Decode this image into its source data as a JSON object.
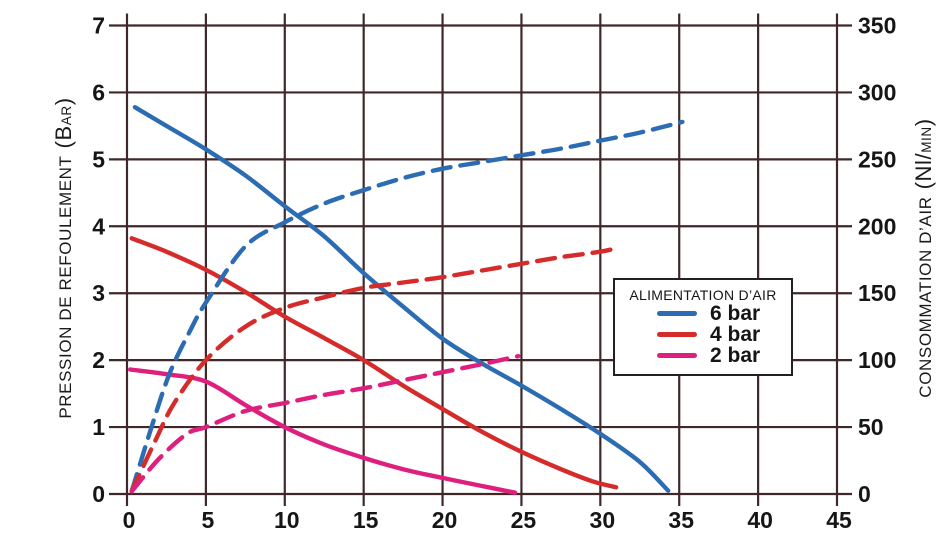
{
  "chart_data": {
    "type": "line",
    "x_axis": {
      "range": [
        0,
        45
      ],
      "ticks": [
        0,
        5,
        10,
        15,
        20,
        25,
        30,
        35,
        40,
        45
      ]
    },
    "left_axis": {
      "label": "PRESSION DE REFOULEMENT",
      "unit_major": "(B",
      "unit_minor": "AR",
      "unit_close": ")",
      "range": [
        0,
        7
      ],
      "ticks": [
        0,
        1,
        2,
        3,
        4,
        5,
        6,
        7
      ]
    },
    "right_axis": {
      "label": "CONSOMMATION D’AIR",
      "unit_major": "(Nl/",
      "unit_minor": "MIN",
      "unit_close": ")",
      "range": [
        0,
        350
      ],
      "ticks": [
        0,
        50,
        100,
        150,
        200,
        250,
        300,
        350
      ]
    },
    "legend": {
      "title": "ALIMENTATION D’AIR",
      "items": [
        {
          "label": "6 bar",
          "color": "#2b6cb3"
        },
        {
          "label": "4 bar",
          "color": "#d52b2b"
        },
        {
          "label": "2 bar",
          "color": "#df1f7d"
        }
      ]
    },
    "grid_color": "#40282a",
    "series": [
      {
        "id": "pression-6bar",
        "legend": "6 bar",
        "color": "#2b6cb3",
        "style": "solid",
        "axis": "left",
        "points": [
          [
            0.5,
            5.78
          ],
          [
            2.5,
            5.5
          ],
          [
            5,
            5.15
          ],
          [
            7.5,
            4.76
          ],
          [
            10,
            4.3
          ],
          [
            12.5,
            3.85
          ],
          [
            15,
            3.3
          ],
          [
            17.5,
            2.8
          ],
          [
            20,
            2.32
          ],
          [
            22.5,
            1.95
          ],
          [
            25,
            1.62
          ],
          [
            27.5,
            1.27
          ],
          [
            30,
            0.9
          ],
          [
            32.5,
            0.48
          ],
          [
            34.3,
            0.05
          ]
        ]
      },
      {
        "id": "pression-4bar",
        "legend": "4 bar",
        "color": "#d52b2b",
        "style": "solid",
        "axis": "left",
        "points": [
          [
            0.3,
            3.82
          ],
          [
            2.5,
            3.62
          ],
          [
            5,
            3.35
          ],
          [
            7.5,
            3.02
          ],
          [
            10,
            2.65
          ],
          [
            12.5,
            2.33
          ],
          [
            15,
            2.0
          ],
          [
            17.5,
            1.62
          ],
          [
            20,
            1.27
          ],
          [
            22.5,
            0.93
          ],
          [
            25,
            0.63
          ],
          [
            27.5,
            0.37
          ],
          [
            29.5,
            0.19
          ],
          [
            31,
            0.1
          ]
        ]
      },
      {
        "id": "pression-2bar",
        "legend": "2 bar",
        "color": "#df1f7d",
        "style": "solid",
        "axis": "left",
        "points": [
          [
            0.2,
            1.86
          ],
          [
            2.5,
            1.79
          ],
          [
            5,
            1.68
          ],
          [
            7.5,
            1.33
          ],
          [
            10,
            1.0
          ],
          [
            12.5,
            0.74
          ],
          [
            15,
            0.54
          ],
          [
            17.5,
            0.37
          ],
          [
            20,
            0.24
          ],
          [
            22.5,
            0.12
          ],
          [
            24.6,
            0.02
          ]
        ]
      },
      {
        "id": "consommation-6bar",
        "legend": "6 bar",
        "color": "#2b6cb3",
        "style": "dashed",
        "axis": "right",
        "points": [
          [
            0.3,
            2
          ],
          [
            1.5,
            48
          ],
          [
            2.7,
            90
          ],
          [
            4,
            122
          ],
          [
            5,
            143
          ],
          [
            7.5,
            185
          ],
          [
            10,
            203
          ],
          [
            12.5,
            217
          ],
          [
            15,
            227
          ],
          [
            17.5,
            236
          ],
          [
            20,
            243
          ],
          [
            22.5,
            248
          ],
          [
            25,
            253
          ],
          [
            27.5,
            258
          ],
          [
            30,
            264
          ],
          [
            32.5,
            270
          ],
          [
            35.2,
            278
          ]
        ]
      },
      {
        "id": "consommation-4bar",
        "legend": "4 bar",
        "color": "#d52b2b",
        "style": "dashed",
        "axis": "right",
        "points": [
          [
            0.3,
            2
          ],
          [
            1.8,
            40
          ],
          [
            3,
            68
          ],
          [
            5,
            100
          ],
          [
            7.5,
            125
          ],
          [
            10,
            139
          ],
          [
            12.5,
            147
          ],
          [
            15,
            154
          ],
          [
            17.5,
            158
          ],
          [
            20,
            162
          ],
          [
            22.5,
            167
          ],
          [
            25,
            172
          ],
          [
            27.5,
            177
          ],
          [
            30,
            181
          ],
          [
            31.1,
            184
          ]
        ]
      },
      {
        "id": "consommation-2bar",
        "legend": "2 bar",
        "color": "#df1f7d",
        "style": "dashed",
        "axis": "right",
        "points": [
          [
            0.3,
            2
          ],
          [
            2,
            26
          ],
          [
            3.8,
            45
          ],
          [
            5,
            50
          ],
          [
            7.5,
            62
          ],
          [
            10,
            68
          ],
          [
            12.5,
            74
          ],
          [
            15,
            79
          ],
          [
            17.5,
            85
          ],
          [
            20,
            91
          ],
          [
            22.5,
            97
          ],
          [
            24.8,
            103
          ]
        ]
      }
    ]
  }
}
